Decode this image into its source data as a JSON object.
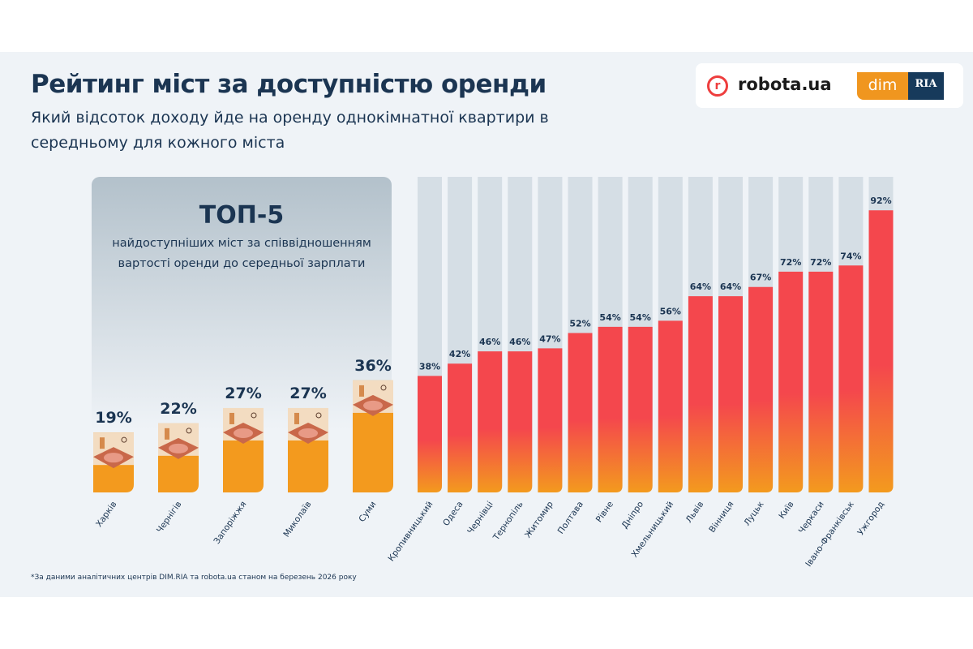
{
  "header": {
    "title": "Рейтинг міст за доступністю оренди",
    "subtitle": "Який відсоток доходу йде на оренду однокімнатної квартири в середньому для кожного міста"
  },
  "logos": {
    "robota": "robota.ua",
    "robota_icon": "r",
    "dim": "dim",
    "ria": "RIA"
  },
  "top5": {
    "title": "ТОП-5",
    "description": "найдоступніших міст за співвідношенням вартості оренди до середньої зарплати"
  },
  "footnote": "*За даними аналітичних центрів DIM.RIA та robota.ua станом на березень 2026 року",
  "chart_data": {
    "type": "bar",
    "unit": "%",
    "ylim": [
      0,
      100
    ],
    "colors": {
      "top5": "#f39a1e",
      "others_top": "#f4474d",
      "others_bottom": "#f39a1e",
      "track": "#d5dee5",
      "label": "#1b3552"
    },
    "top5": {
      "categories": [
        "Харків",
        "Чернігів",
        "Запоріжжя",
        "Миколаїв",
        "Суми"
      ],
      "values": [
        19,
        22,
        27,
        27,
        36
      ],
      "labels": [
        "19%",
        "22%",
        "27%",
        "27%",
        "36%"
      ]
    },
    "others": {
      "categories": [
        "Кропивницький",
        "Одеса",
        "Чернівці",
        "Тернопіль",
        "Житомир",
        "Полтава",
        "Рівне",
        "Дніпро",
        "Хмельницький",
        "Львів",
        "Вінниця",
        "Луцьк",
        "Київ",
        "Черкаси",
        "Івано-Франківськ",
        "Ужгород"
      ],
      "values": [
        38,
        42,
        46,
        46,
        47,
        52,
        54,
        54,
        56,
        64,
        64,
        67,
        72,
        72,
        74,
        92
      ],
      "labels": [
        "38%",
        "42%",
        "46%",
        "46%",
        "47%",
        "52%",
        "54%",
        "54%",
        "56%",
        "64%",
        "64%",
        "67%",
        "72%",
        "72%",
        "74%",
        "92%"
      ]
    }
  }
}
